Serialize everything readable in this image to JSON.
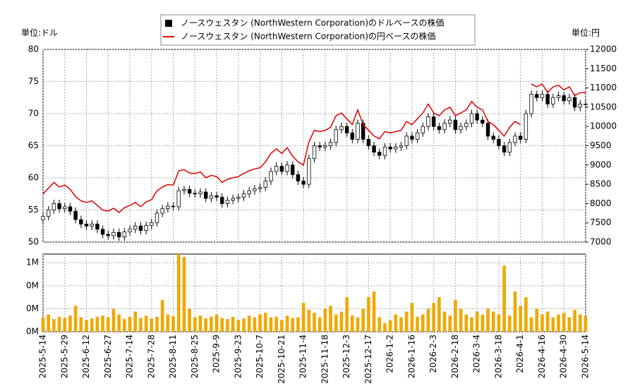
{
  "chart_data": [
    {
      "type": "candlestick",
      "ylabel": "単位:ドル",
      "y2label": "単位:円",
      "ylim": [
        50,
        80
      ],
      "yticks": [
        50,
        55,
        60,
        65,
        70,
        75,
        80
      ],
      "y2lim": [
        7000,
        12000
      ],
      "y2ticks": [
        7000,
        7500,
        8000,
        8500,
        9000,
        9500,
        10000,
        10500,
        11000,
        11500,
        12000
      ],
      "grid": true,
      "categories": [
        "2025-5-14",
        null,
        null,
        null,
        "2025-5-29",
        null,
        null,
        null,
        "2025-6-12",
        null,
        null,
        null,
        "2025-6-27",
        null,
        null,
        null,
        "2025-7-14",
        null,
        null,
        null,
        "2025-7-28",
        null,
        null,
        null,
        "2025-8-11",
        null,
        null,
        null,
        "2025-8-25",
        null,
        null,
        null,
        "2025-9-9",
        null,
        null,
        null,
        "2025-9-23",
        null,
        null,
        null,
        "2025-10-7",
        null,
        null,
        null,
        "2025-10-21",
        null,
        null,
        null,
        "2025-11-4",
        null,
        null,
        null,
        "2025-11-18",
        null,
        null,
        null,
        "2025-12-3",
        null,
        null,
        null,
        "2025-12-17",
        null,
        null,
        null,
        "2026-1-2",
        null,
        null,
        null,
        "2026-1-16",
        null,
        null,
        null,
        "2026-2-3",
        null,
        null,
        null,
        "2026-2-18",
        null,
        null,
        null,
        "2026-3-4",
        null,
        null,
        null,
        "2026-3-18",
        null,
        null,
        null,
        "2026-4-1",
        null,
        null,
        null,
        "2026-4-16",
        null,
        null,
        null,
        "2026-4-30",
        null,
        null,
        null,
        "2026-5-14"
      ],
      "series": [
        {
          "name": "ノースウェスタン (NorthWestern Corporation)のドルベースの株価",
          "color": "#000000",
          "up_color": "#ffffff",
          "open": [
            53.5,
            54,
            55,
            56,
            55.2,
            55.5,
            54.8,
            53.5,
            52.8,
            52.5,
            52.8,
            52,
            51.2,
            51,
            51.5,
            50.8,
            51.6,
            52,
            52.5,
            51.8,
            52.6,
            53,
            54.5,
            55.2,
            55.6,
            55.5,
            58,
            58.2,
            57.6,
            57.5,
            57.8,
            56.8,
            57.2,
            57,
            56,
            56.5,
            56.8,
            57,
            57.5,
            58,
            58.3,
            58.5,
            59.5,
            61,
            61.8,
            61,
            62,
            60.5,
            59.5,
            59,
            63,
            65,
            64.8,
            65,
            65.5,
            67.5,
            68,
            67,
            66,
            68.5,
            66,
            65,
            64,
            63.5,
            64.8,
            64.5,
            64.8,
            65,
            66.5,
            66,
            67,
            68,
            69.5,
            68,
            67.5,
            68.5,
            69,
            67.5,
            68,
            68.5,
            70,
            69,
            68.5,
            66.5,
            66,
            65,
            64,
            65.5,
            66.5,
            66,
            70,
            73,
            72.5,
            73,
            71.5,
            72.5,
            72.8,
            72,
            72.5,
            71,
            71.5
          ],
          "high": [
            54.6,
            55.6,
            56.6,
            56.6,
            56.1,
            56.1,
            55.4,
            54.1,
            53.4,
            53.4,
            53.4,
            52.6,
            51.8,
            52.1,
            52.1,
            52.2,
            52.6,
            53.1,
            53.1,
            53.2,
            53.6,
            55.1,
            55.8,
            56.2,
            56.2,
            58.6,
            58.8,
            58.8,
            58.2,
            58.4,
            58.4,
            57.8,
            57.8,
            57.6,
            57.1,
            57.4,
            57.6,
            58.1,
            58.6,
            58.9,
            59.1,
            60.1,
            61.6,
            62.4,
            62.4,
            62.6,
            62.6,
            61.1,
            60.1,
            63.6,
            65.6,
            65.6,
            65.6,
            66.1,
            68.1,
            68.6,
            68.6,
            67.6,
            69.1,
            69.1,
            66.6,
            65.6,
            64.6,
            65.4,
            65.4,
            65.4,
            65.6,
            67.1,
            67.1,
            67.6,
            68.6,
            70.1,
            70.1,
            68.6,
            69.1,
            69.6,
            69.6,
            68.6,
            69.1,
            70.6,
            70.6,
            69.6,
            69.1,
            67.1,
            66.6,
            65.6,
            66.1,
            67.1,
            67.1,
            70.6,
            73.6,
            73.6,
            73.6,
            73.6,
            73.1,
            73.4,
            73.4,
            73.1,
            73.1,
            72.1,
            72.1
          ],
          "low": [
            52.9,
            53.4,
            54.4,
            54.6,
            54.6,
            54.2,
            52.9,
            52.2,
            51.9,
            51.9,
            51.4,
            50.6,
            50.4,
            50.4,
            50.2,
            50.2,
            51,
            51.4,
            51.2,
            51.2,
            52,
            52.4,
            53.9,
            54.6,
            54.9,
            54.9,
            57.4,
            57,
            56.9,
            56.9,
            56.2,
            56.2,
            56.4,
            55.4,
            55.4,
            55.9,
            56.2,
            56.4,
            56.9,
            57.4,
            57.7,
            57.9,
            58.9,
            60.4,
            60.4,
            60.4,
            59.9,
            58.9,
            58.4,
            58.4,
            62.4,
            64.2,
            64.2,
            64.4,
            64.9,
            66.9,
            66.4,
            65.4,
            65.4,
            65.4,
            64.4,
            63.4,
            62.9,
            62.9,
            63.9,
            63.9,
            64.2,
            64.4,
            65.4,
            65.4,
            66.4,
            67.4,
            67.4,
            66.9,
            66.9,
            67.9,
            66.9,
            66.9,
            67.4,
            67.9,
            68.4,
            67.9,
            65.9,
            65.4,
            64.4,
            63.4,
            63.4,
            64.9,
            65.4,
            65.4,
            69.4,
            71.9,
            71.9,
            70.9,
            70.9,
            71.9,
            71.4,
            71.4,
            70.4,
            70.4,
            70.9
          ],
          "close": [
            54,
            55,
            56,
            55.2,
            55.5,
            54.8,
            53.5,
            52.8,
            52.5,
            52.8,
            52,
            51.2,
            51,
            51.5,
            50.8,
            51.6,
            52,
            52.5,
            51.8,
            52.6,
            53,
            54.5,
            55.2,
            55.6,
            55.5,
            58,
            58.2,
            57.6,
            57.5,
            57.8,
            56.8,
            57.2,
            57,
            56,
            56.5,
            56.8,
            57,
            57.5,
            58,
            58.3,
            58.5,
            59.5,
            61,
            61.8,
            61,
            62,
            60.5,
            59.5,
            59,
            63,
            65,
            64.8,
            65,
            65.5,
            67.5,
            68,
            67,
            66,
            68.5,
            66,
            65,
            64,
            63.5,
            64.8,
            64.5,
            64.8,
            65,
            66.5,
            66,
            67,
            68,
            69.5,
            68,
            67.5,
            68.5,
            69,
            67.5,
            68,
            68.5,
            70,
            69,
            68.5,
            66.5,
            66,
            65,
            64,
            65.5,
            66.5,
            66,
            70,
            73,
            72.5,
            73,
            71.5,
            72.5,
            72.8,
            72,
            72.5,
            71,
            71.5,
            71.5
          ]
        },
        {
          "name": "ノースウェスタン (NorthWestern Corporation)の円ベースの株価",
          "type": "line",
          "color": "#dd0000",
          "axis": "y2",
          "values": [
            8250,
            8400,
            8550,
            8430,
            8480,
            8370,
            8180,
            8070,
            8030,
            8070,
            7950,
            7830,
            7800,
            7880,
            7770,
            7890,
            7950,
            8030,
            7920,
            8040,
            8100,
            8330,
            8430,
            8490,
            8480,
            8850,
            8880,
            8790,
            8780,
            8820,
            8670,
            8730,
            8700,
            8550,
            8630,
            8670,
            8700,
            8780,
            8850,
            8900,
            8930,
            9080,
            9300,
            9420,
            9300,
            9450,
            9230,
            9080,
            9000,
            9600,
            9900,
            9870,
            9900,
            9980,
            10280,
            10350,
            10200,
            10050,
            10430,
            10050,
            9900,
            9750,
            9680,
            9870,
            9830,
            9870,
            9900,
            10130,
            10050,
            10200,
            10350,
            10580,
            10350,
            10280,
            10430,
            10500,
            10280,
            10350,
            10430,
            10650,
            10500,
            10430,
            10130,
            10050,
            9900,
            9750,
            9980,
            10130,
            10050,
            null,
            11100,
            11030,
            11100,
            10880,
            11030,
            11070,
            10950,
            11030,
            10800,
            10880,
            10880
          ]
        }
      ]
    },
    {
      "type": "bar",
      "color": "#f0a800",
      "ylim": [
        0,
        1350000
      ],
      "yticks": [
        {
          "value": 0,
          "label": "0M"
        },
        {
          "value": 400000,
          "label": "0M"
        },
        {
          "value": 800000,
          "label": "0M"
        },
        {
          "value": 1200000,
          "label": "1M"
        }
      ],
      "values": [
        250000,
        300000,
        220000,
        260000,
        240000,
        280000,
        450000,
        250000,
        200000,
        230000,
        260000,
        280000,
        250000,
        400000,
        300000,
        220000,
        260000,
        350000,
        240000,
        280000,
        230000,
        260000,
        550000,
        300000,
        270000,
        1350000,
        1300000,
        400000,
        250000,
        280000,
        230000,
        260000,
        300000,
        240000,
        220000,
        260000,
        200000,
        230000,
        280000,
        250000,
        300000,
        330000,
        250000,
        260000,
        200000,
        280000,
        240000,
        250000,
        500000,
        380000,
        330000,
        250000,
        400000,
        450000,
        300000,
        350000,
        600000,
        280000,
        250000,
        400000,
        600000,
        700000,
        250000,
        150000,
        200000,
        300000,
        250000,
        350000,
        500000,
        260000,
        300000,
        400000,
        500000,
        600000,
        350000,
        280000,
        550000,
        400000,
        300000,
        250000,
        350000,
        300000,
        400000,
        350000,
        300000,
        1150000,
        280000,
        700000,
        450000,
        600000,
        250000,
        400000,
        300000,
        350000,
        250000,
        300000,
        330000,
        250000,
        380000,
        300000,
        270000
      ]
    }
  ]
}
